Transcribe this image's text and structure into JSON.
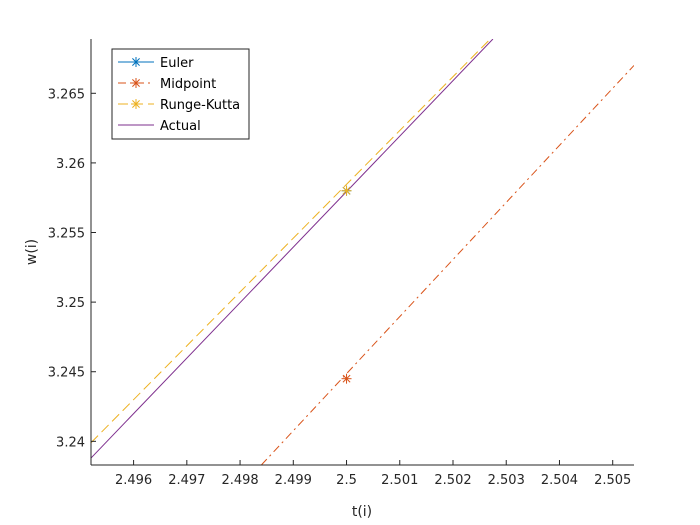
{
  "chart_data": {
    "type": "line",
    "title": "",
    "xlabel": "t(i)",
    "ylabel": "w(i)",
    "xlim": [
      2.4952,
      2.5054
    ],
    "ylim": [
      3.2383,
      3.2689
    ],
    "xticks": [
      2.496,
      2.497,
      2.498,
      2.499,
      2.5,
      2.501,
      2.502,
      2.503,
      2.504,
      2.505
    ],
    "xtick_labels": [
      "2.496",
      "2.497",
      "2.498",
      "2.499",
      "2.5",
      "2.501",
      "2.502",
      "2.503",
      "2.504",
      "2.505"
    ],
    "yticks": [
      3.24,
      3.245,
      3.25,
      3.255,
      3.26,
      3.265
    ],
    "ytick_labels": [
      "3.24",
      "3.245",
      "3.25",
      "3.255",
      "3.26",
      "3.265"
    ],
    "grid": false,
    "legend_position": "top-left",
    "series": [
      {
        "name": "Euler",
        "color": "#0072BD",
        "line_style": "solid",
        "marker": "asterisk",
        "x": [
          2.5
        ],
        "y": [
          3.258
        ],
        "markers_x": [
          2.5
        ],
        "markers_y": [
          3.258
        ]
      },
      {
        "name": "Midpoint",
        "color": "#D95319",
        "line_style": "dashdot",
        "marker": "asterisk",
        "x": [
          2.4984,
          2.5054
        ],
        "y": [
          3.2383,
          3.267
        ],
        "markers_x": [
          2.5
        ],
        "markers_y": [
          3.2445
        ]
      },
      {
        "name": "Runge-Kutta",
        "color": "#EDB120",
        "line_style": "dashed",
        "marker": "asterisk",
        "x": [
          2.4952,
          2.5027
        ],
        "y": [
          3.2399,
          3.2689
        ],
        "markers_x": [
          2.5
        ],
        "markers_y": [
          3.258
        ]
      },
      {
        "name": "Actual",
        "color": "#7E2F8E",
        "line_style": "solid",
        "marker": "none",
        "x": [
          2.4952,
          2.50275
        ],
        "y": [
          3.2388,
          3.2689
        ],
        "markers_x": [],
        "markers_y": []
      }
    ]
  }
}
